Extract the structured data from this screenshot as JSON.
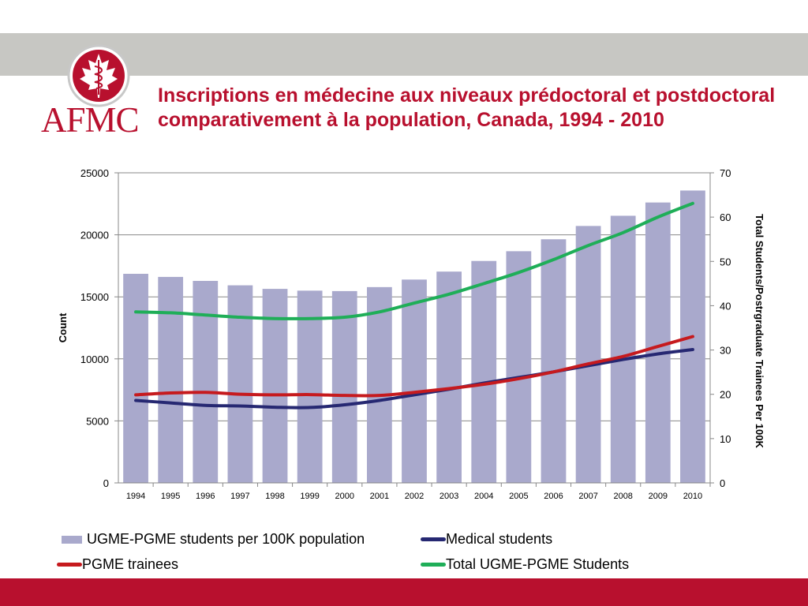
{
  "logo": {
    "text": "AFMC"
  },
  "title": "Inscriptions en médecine aux niveaux prédoctoral et postdoctoral comparativement à la population, Canada, 1994 - 2010",
  "colors": {
    "brand_red": "#b8102e",
    "bar": "#a9a9cc",
    "medical_students": "#262872",
    "pgme_trainees": "#c61a1e",
    "total": "#1fae58",
    "grid": "#888888"
  },
  "chart_data": {
    "type": "bar",
    "title": "Inscriptions en médecine aux niveaux prédoctoral et postdoctoral comparativement à la population, Canada, 1994 - 2010",
    "categories": [
      "1994",
      "1995",
      "1996",
      "1997",
      "1998",
      "1999",
      "2000",
      "2001",
      "2002",
      "2003",
      "2004",
      "2005",
      "2006",
      "2007",
      "2008",
      "2009",
      "2010"
    ],
    "ylabel": "Count",
    "y2label": "Total Students/Postrgraduate Trainees Per 100K",
    "ylim": [
      0,
      25000
    ],
    "y2lim": [
      0,
      70
    ],
    "yticks": [
      0,
      5000,
      10000,
      15000,
      20000,
      25000
    ],
    "y2ticks": [
      0,
      10,
      20,
      30,
      40,
      50,
      60,
      70
    ],
    "grid": true,
    "legend_position": "bottom",
    "series": [
      {
        "name": "UGME-PGME students per 100K population",
        "type": "bar",
        "axis": "right",
        "values": [
          47.2,
          46.5,
          45.6,
          44.6,
          43.8,
          43.4,
          43.3,
          44.2,
          45.9,
          47.7,
          50.1,
          52.3,
          55.0,
          58.0,
          60.3,
          63.3,
          66.0
        ]
      },
      {
        "name": "Medical students",
        "type": "line",
        "axis": "left",
        "values": [
          6650,
          6450,
          6250,
          6200,
          6100,
          6080,
          6300,
          6650,
          7100,
          7550,
          8050,
          8500,
          8950,
          9450,
          9950,
          10400,
          10750
        ]
      },
      {
        "name": "PGME trainees",
        "type": "line",
        "axis": "left",
        "values": [
          7100,
          7250,
          7300,
          7150,
          7100,
          7120,
          7050,
          7050,
          7300,
          7600,
          7950,
          8400,
          8950,
          9600,
          10200,
          11000,
          11800
        ]
      },
      {
        "name": "Total UGME-PGME Students",
        "type": "line",
        "axis": "right",
        "values": [
          38.6,
          38.4,
          37.9,
          37.4,
          37.1,
          37.1,
          37.4,
          38.6,
          40.6,
          42.6,
          45.0,
          47.5,
          50.4,
          53.6,
          56.5,
          60.0,
          63.1
        ]
      }
    ]
  }
}
